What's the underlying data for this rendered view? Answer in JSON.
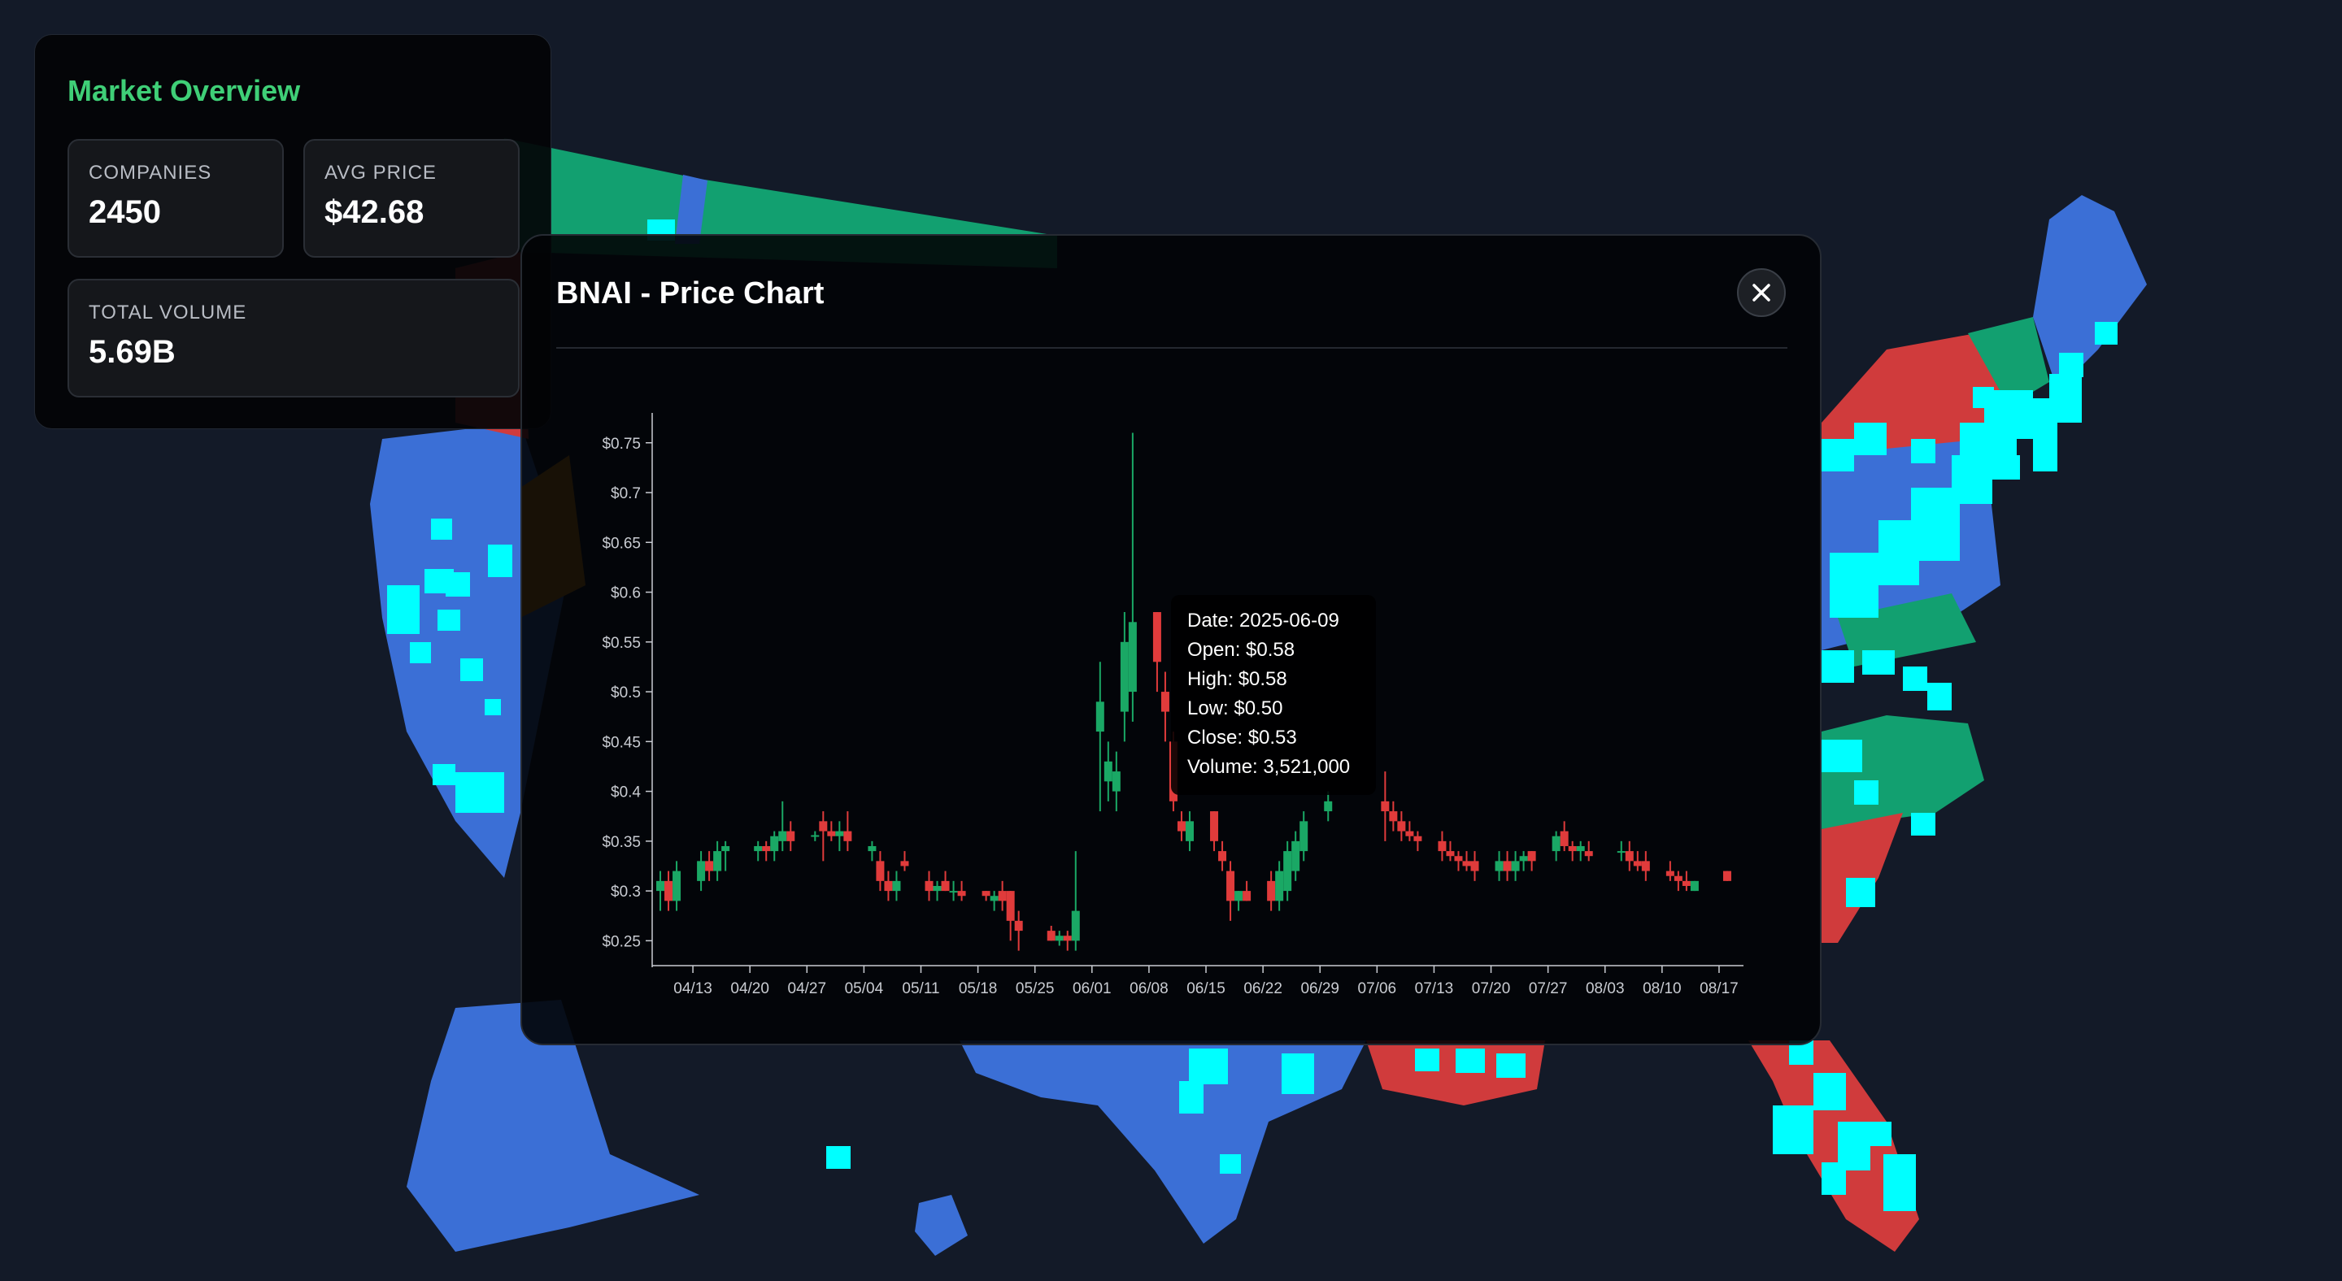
{
  "colors": {
    "background": "#131a28",
    "state_blue": "#3b6fd6",
    "state_red": "#d03b3c",
    "state_green": "#12a070",
    "state_orange": "#e08a12",
    "marker_cyan": "#00ffff",
    "accent_green": "#3fcf77",
    "candle_up": "#1aa865",
    "candle_down": "#e03b3b"
  },
  "overview": {
    "title": "Market Overview",
    "companies_label": "COMPANIES",
    "companies_value": "2450",
    "avg_price_label": "AVG PRICE",
    "avg_price_value": "$42.68",
    "total_volume_label": "TOTAL VOLUME",
    "total_volume_value": "5.69B"
  },
  "modal": {
    "title": "BNAI - Price Chart",
    "close_icon": "close-icon"
  },
  "tooltip": {
    "date": "Date: 2025-06-09",
    "open": "Open: $0.58",
    "high": "High: $0.58",
    "low": "Low: $0.50",
    "close": "Close: $0.53",
    "volume": "Volume: 3,521,000"
  },
  "chart_data": {
    "type": "candlestick",
    "title": "",
    "xlabel": "",
    "ylabel": "",
    "ylim": [
      0.225,
      0.78
    ],
    "y_ticks": [
      "$0.25",
      "$0.3",
      "$0.35",
      "$0.4",
      "$0.45",
      "$0.5",
      "$0.55",
      "$0.6",
      "$0.65",
      "$0.7",
      "$0.75"
    ],
    "y_tick_values": [
      0.25,
      0.3,
      0.35,
      0.4,
      0.45,
      0.5,
      0.55,
      0.6,
      0.65,
      0.7,
      0.75
    ],
    "x_ticks": [
      "04/13",
      "04/20",
      "04/27",
      "05/04",
      "05/11",
      "05/18",
      "05/25",
      "06/01",
      "06/08",
      "06/15",
      "06/22",
      "06/29",
      "07/06",
      "07/13",
      "07/20",
      "07/27",
      "08/03",
      "08/10",
      "08/17"
    ],
    "candles": [
      {
        "date": "2025-04-09",
        "o": 0.3,
        "h": 0.32,
        "l": 0.28,
        "c": 0.31
      },
      {
        "date": "2025-04-10",
        "o": 0.31,
        "h": 0.32,
        "l": 0.28,
        "c": 0.29
      },
      {
        "date": "2025-04-11",
        "o": 0.29,
        "h": 0.33,
        "l": 0.28,
        "c": 0.32
      },
      {
        "date": "2025-04-14",
        "o": 0.31,
        "h": 0.34,
        "l": 0.3,
        "c": 0.33
      },
      {
        "date": "2025-04-15",
        "o": 0.33,
        "h": 0.34,
        "l": 0.31,
        "c": 0.32
      },
      {
        "date": "2025-04-16",
        "o": 0.32,
        "h": 0.35,
        "l": 0.31,
        "c": 0.34
      },
      {
        "date": "2025-04-17",
        "o": 0.34,
        "h": 0.35,
        "l": 0.32,
        "c": 0.345
      },
      {
        "date": "2025-04-21",
        "o": 0.34,
        "h": 0.35,
        "l": 0.33,
        "c": 0.345
      },
      {
        "date": "2025-04-22",
        "o": 0.345,
        "h": 0.35,
        "l": 0.33,
        "c": 0.34
      },
      {
        "date": "2025-04-23",
        "o": 0.34,
        "h": 0.36,
        "l": 0.33,
        "c": 0.355
      },
      {
        "date": "2025-04-24",
        "o": 0.35,
        "h": 0.39,
        "l": 0.34,
        "c": 0.36
      },
      {
        "date": "2025-04-25",
        "o": 0.36,
        "h": 0.37,
        "l": 0.34,
        "c": 0.35
      },
      {
        "date": "2025-04-28",
        "o": 0.355,
        "h": 0.36,
        "l": 0.35,
        "c": 0.356
      },
      {
        "date": "2025-04-29",
        "o": 0.37,
        "h": 0.38,
        "l": 0.33,
        "c": 0.36
      },
      {
        "date": "2025-04-30",
        "o": 0.36,
        "h": 0.37,
        "l": 0.35,
        "c": 0.355
      },
      {
        "date": "2025-05-01",
        "o": 0.355,
        "h": 0.37,
        "l": 0.34,
        "c": 0.36
      },
      {
        "date": "2025-05-02",
        "o": 0.36,
        "h": 0.38,
        "l": 0.34,
        "c": 0.35
      },
      {
        "date": "2025-05-05",
        "o": 0.34,
        "h": 0.35,
        "l": 0.33,
        "c": 0.345
      },
      {
        "date": "2025-05-06",
        "o": 0.33,
        "h": 0.34,
        "l": 0.3,
        "c": 0.31
      },
      {
        "date": "2025-05-07",
        "o": 0.31,
        "h": 0.32,
        "l": 0.29,
        "c": 0.3
      },
      {
        "date": "2025-05-08",
        "o": 0.3,
        "h": 0.32,
        "l": 0.29,
        "c": 0.31
      },
      {
        "date": "2025-05-09",
        "o": 0.33,
        "h": 0.34,
        "l": 0.32,
        "c": 0.325
      },
      {
        "date": "2025-05-12",
        "o": 0.31,
        "h": 0.32,
        "l": 0.29,
        "c": 0.3
      },
      {
        "date": "2025-05-13",
        "o": 0.3,
        "h": 0.31,
        "l": 0.29,
        "c": 0.305
      },
      {
        "date": "2025-05-14",
        "o": 0.31,
        "h": 0.32,
        "l": 0.3,
        "c": 0.3
      },
      {
        "date": "2025-05-15",
        "o": 0.3,
        "h": 0.31,
        "l": 0.29,
        "c": 0.3
      },
      {
        "date": "2025-05-16",
        "o": 0.3,
        "h": 0.31,
        "l": 0.29,
        "c": 0.295
      },
      {
        "date": "2025-05-19",
        "o": 0.3,
        "h": 0.3,
        "l": 0.29,
        "c": 0.295
      },
      {
        "date": "2025-05-20",
        "o": 0.29,
        "h": 0.3,
        "l": 0.28,
        "c": 0.295
      },
      {
        "date": "2025-05-21",
        "o": 0.3,
        "h": 0.31,
        "l": 0.28,
        "c": 0.29
      },
      {
        "date": "2025-05-22",
        "o": 0.3,
        "h": 0.3,
        "l": 0.25,
        "c": 0.27
      },
      {
        "date": "2025-05-23",
        "o": 0.27,
        "h": 0.28,
        "l": 0.24,
        "c": 0.26
      },
      {
        "date": "2025-05-27",
        "o": 0.26,
        "h": 0.265,
        "l": 0.25,
        "c": 0.25
      },
      {
        "date": "2025-05-28",
        "o": 0.25,
        "h": 0.26,
        "l": 0.245,
        "c": 0.255
      },
      {
        "date": "2025-05-29",
        "o": 0.255,
        "h": 0.26,
        "l": 0.24,
        "c": 0.25
      },
      {
        "date": "2025-05-30",
        "o": 0.25,
        "h": 0.34,
        "l": 0.24,
        "c": 0.28
      },
      {
        "date": "2025-06-02",
        "o": 0.46,
        "h": 0.53,
        "l": 0.38,
        "c": 0.49
      },
      {
        "date": "2025-06-03",
        "o": 0.41,
        "h": 0.45,
        "l": 0.39,
        "c": 0.43
      },
      {
        "date": "2025-06-04",
        "o": 0.4,
        "h": 0.44,
        "l": 0.38,
        "c": 0.42
      },
      {
        "date": "2025-06-05",
        "o": 0.48,
        "h": 0.58,
        "l": 0.45,
        "c": 0.55
      },
      {
        "date": "2025-06-06",
        "o": 0.5,
        "h": 0.76,
        "l": 0.47,
        "c": 0.57
      },
      {
        "date": "2025-06-09",
        "o": 0.58,
        "h": 0.58,
        "l": 0.5,
        "c": 0.53
      },
      {
        "date": "2025-06-10",
        "o": 0.5,
        "h": 0.52,
        "l": 0.45,
        "c": 0.48
      },
      {
        "date": "2025-06-11",
        "o": 0.45,
        "h": 0.46,
        "l": 0.38,
        "c": 0.39
      },
      {
        "date": "2025-06-12",
        "o": 0.37,
        "h": 0.38,
        "l": 0.35,
        "c": 0.36
      },
      {
        "date": "2025-06-13",
        "o": 0.35,
        "h": 0.38,
        "l": 0.34,
        "c": 0.37
      },
      {
        "date": "2025-06-16",
        "o": 0.38,
        "h": 0.38,
        "l": 0.34,
        "c": 0.35
      },
      {
        "date": "2025-06-17",
        "o": 0.34,
        "h": 0.35,
        "l": 0.32,
        "c": 0.33
      },
      {
        "date": "2025-06-18",
        "o": 0.32,
        "h": 0.33,
        "l": 0.27,
        "c": 0.29
      },
      {
        "date": "2025-06-19",
        "o": 0.29,
        "h": 0.3,
        "l": 0.28,
        "c": 0.3
      },
      {
        "date": "2025-06-20",
        "o": 0.3,
        "h": 0.31,
        "l": 0.29,
        "c": 0.29
      },
      {
        "date": "2025-06-23",
        "o": 0.31,
        "h": 0.32,
        "l": 0.28,
        "c": 0.29
      },
      {
        "date": "2025-06-24",
        "o": 0.29,
        "h": 0.33,
        "l": 0.28,
        "c": 0.32
      },
      {
        "date": "2025-06-25",
        "o": 0.3,
        "h": 0.35,
        "l": 0.29,
        "c": 0.34
      },
      {
        "date": "2025-06-26",
        "o": 0.32,
        "h": 0.36,
        "l": 0.31,
        "c": 0.35
      },
      {
        "date": "2025-06-27",
        "o": 0.34,
        "h": 0.38,
        "l": 0.33,
        "c": 0.37
      },
      {
        "date": "2025-06-30",
        "o": 0.38,
        "h": 0.4,
        "l": 0.37,
        "c": 0.39
      },
      {
        "date": "2025-07-07",
        "o": 0.39,
        "h": 0.42,
        "l": 0.35,
        "c": 0.38
      },
      {
        "date": "2025-07-08",
        "o": 0.38,
        "h": 0.39,
        "l": 0.36,
        "c": 0.37
      },
      {
        "date": "2025-07-09",
        "o": 0.37,
        "h": 0.38,
        "l": 0.35,
        "c": 0.36
      },
      {
        "date": "2025-07-10",
        "o": 0.36,
        "h": 0.37,
        "l": 0.35,
        "c": 0.355
      },
      {
        "date": "2025-07-11",
        "o": 0.355,
        "h": 0.36,
        "l": 0.34,
        "c": 0.35
      },
      {
        "date": "2025-07-14",
        "o": 0.35,
        "h": 0.36,
        "l": 0.33,
        "c": 0.34
      },
      {
        "date": "2025-07-15",
        "o": 0.34,
        "h": 0.35,
        "l": 0.33,
        "c": 0.335
      },
      {
        "date": "2025-07-16",
        "o": 0.335,
        "h": 0.34,
        "l": 0.32,
        "c": 0.33
      },
      {
        "date": "2025-07-17",
        "o": 0.33,
        "h": 0.34,
        "l": 0.32,
        "c": 0.325
      },
      {
        "date": "2025-07-18",
        "o": 0.33,
        "h": 0.34,
        "l": 0.31,
        "c": 0.32
      },
      {
        "date": "2025-07-21",
        "o": 0.32,
        "h": 0.34,
        "l": 0.31,
        "c": 0.33
      },
      {
        "date": "2025-07-22",
        "o": 0.33,
        "h": 0.34,
        "l": 0.31,
        "c": 0.32
      },
      {
        "date": "2025-07-23",
        "o": 0.32,
        "h": 0.34,
        "l": 0.31,
        "c": 0.33
      },
      {
        "date": "2025-07-24",
        "o": 0.33,
        "h": 0.34,
        "l": 0.32,
        "c": 0.335
      },
      {
        "date": "2025-07-25",
        "o": 0.34,
        "h": 0.34,
        "l": 0.32,
        "c": 0.33
      },
      {
        "date": "2025-07-28",
        "o": 0.34,
        "h": 0.36,
        "l": 0.33,
        "c": 0.355
      },
      {
        "date": "2025-07-29",
        "o": 0.36,
        "h": 0.37,
        "l": 0.34,
        "c": 0.345
      },
      {
        "date": "2025-07-30",
        "o": 0.345,
        "h": 0.35,
        "l": 0.33,
        "c": 0.34
      },
      {
        "date": "2025-07-31",
        "o": 0.34,
        "h": 0.35,
        "l": 0.33,
        "c": 0.345
      },
      {
        "date": "2025-08-01",
        "o": 0.34,
        "h": 0.35,
        "l": 0.33,
        "c": 0.335
      },
      {
        "date": "2025-08-05",
        "o": 0.34,
        "h": 0.35,
        "l": 0.33,
        "c": 0.34
      },
      {
        "date": "2025-08-06",
        "o": 0.34,
        "h": 0.35,
        "l": 0.32,
        "c": 0.33
      },
      {
        "date": "2025-08-07",
        "o": 0.33,
        "h": 0.34,
        "l": 0.32,
        "c": 0.325
      },
      {
        "date": "2025-08-08",
        "o": 0.33,
        "h": 0.34,
        "l": 0.31,
        "c": 0.32
      },
      {
        "date": "2025-08-11",
        "o": 0.32,
        "h": 0.33,
        "l": 0.31,
        "c": 0.315
      },
      {
        "date": "2025-08-12",
        "o": 0.315,
        "h": 0.32,
        "l": 0.3,
        "c": 0.31
      },
      {
        "date": "2025-08-13",
        "o": 0.31,
        "h": 0.32,
        "l": 0.3,
        "c": 0.305
      },
      {
        "date": "2025-08-14",
        "o": 0.3,
        "h": 0.31,
        "l": 0.3,
        "c": 0.31
      },
      {
        "date": "2025-08-18",
        "o": 0.32,
        "h": 0.32,
        "l": 0.31,
        "c": 0.31
      }
    ]
  }
}
